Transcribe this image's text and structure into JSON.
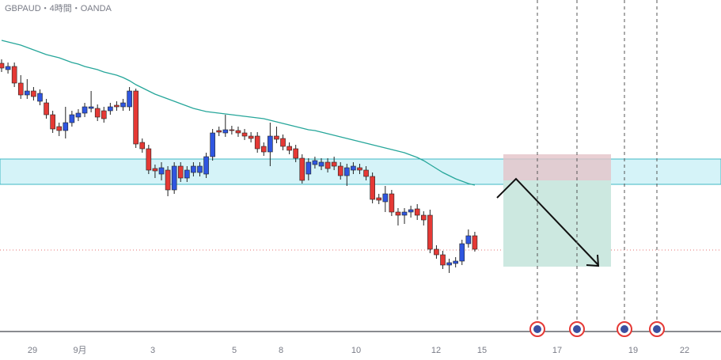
{
  "chart_data": {
    "type": "candlestick",
    "title": "GBPAUD・4時間・OANDA",
    "x_labels": [
      "29",
      "9月",
      "3",
      "5",
      "8",
      "10",
      "12",
      "15",
      "17",
      "19",
      "22"
    ],
    "ylim": [
      1.958,
      2.0
    ],
    "up_color": "#2f56e0",
    "down_color": "#e53935",
    "open": [
      1.992,
      1.9912,
      1.9916,
      1.9895,
      1.988,
      1.9885,
      1.9872,
      1.987,
      1.9855,
      1.984,
      1.9835,
      1.9845,
      1.9852,
      1.9857,
      1.9863,
      1.9863,
      1.986,
      1.986,
      1.9867,
      1.9865,
      1.9865,
      1.9885,
      1.982,
      1.9812,
      1.9787,
      1.978,
      1.9785,
      1.976,
      1.979,
      1.9775,
      1.9782,
      1.9782,
      1.978,
      1.9802,
      1.9835,
      1.9832,
      1.9836,
      1.9835,
      1.9832,
      1.9828,
      1.9828,
      1.9815,
      1.9808,
      1.9828,
      1.9825,
      1.9815,
      1.9812,
      1.98,
      1.978,
      1.9792,
      1.979,
      1.9795,
      1.9795,
      1.979,
      1.9778,
      1.9785,
      1.9788,
      1.9785,
      1.9777,
      1.975,
      1.9745,
      1.9755,
      1.9732,
      1.9728,
      1.9732,
      1.9736,
      1.9728,
      1.9728,
      1.9685,
      1.9678,
      1.9665,
      1.9667,
      1.967,
      1.9692,
      1.9702
    ],
    "high": [
      1.9925,
      1.9921,
      1.9921,
      1.9905,
      1.99,
      1.989,
      1.9887,
      1.9875,
      1.986,
      1.9845,
      1.9865,
      1.986,
      1.9862,
      1.987,
      1.9885,
      1.9868,
      1.9865,
      1.987,
      1.9872,
      1.9875,
      1.989,
      1.9888,
      1.9825,
      1.9817,
      1.9792,
      1.9795,
      1.979,
      1.9795,
      1.9795,
      1.979,
      1.9795,
      1.9795,
      1.9807,
      1.9837,
      1.984,
      1.9855,
      1.9841,
      1.984,
      1.9837,
      1.9833,
      1.9833,
      1.982,
      1.9845,
      1.984,
      1.983,
      1.982,
      1.9817,
      1.9805,
      1.98,
      1.9802,
      1.98,
      1.98,
      1.9802,
      1.9795,
      1.9793,
      1.9795,
      1.9793,
      1.979,
      1.9782,
      1.9755,
      1.9765,
      1.976,
      1.9737,
      1.9737,
      1.974,
      1.9742,
      1.9733,
      1.9735,
      1.969,
      1.9683,
      1.9673,
      1.9675,
      1.9697,
      1.971,
      1.9707
    ],
    "low": [
      1.9909,
      1.9907,
      1.989,
      1.9875,
      1.9875,
      1.9873,
      1.9867,
      1.985,
      1.9832,
      1.9828,
      1.9825,
      1.984,
      1.9847,
      1.9852,
      1.9858,
      1.9847,
      1.9845,
      1.9855,
      1.986,
      1.986,
      1.986,
      1.9813,
      1.9807,
      1.978,
      1.9775,
      1.9772,
      1.9752,
      1.9755,
      1.977,
      1.977,
      1.9777,
      1.9777,
      1.9775,
      1.9797,
      1.9828,
      1.9827,
      1.983,
      1.9827,
      1.9823,
      1.982,
      1.9807,
      1.9803,
      1.979,
      1.9819,
      1.981,
      1.9805,
      1.9795,
      1.9768,
      1.9772,
      1.9787,
      1.9785,
      1.9782,
      1.9785,
      1.9773,
      1.9765,
      1.978,
      1.978,
      1.9772,
      1.9743,
      1.9742,
      1.9732,
      1.9727,
      1.9715,
      1.9717,
      1.9725,
      1.9722,
      1.9715,
      1.968,
      1.9673,
      1.966,
      1.9655,
      1.9662,
      1.9665,
      1.9687,
      1.9682
    ],
    "close": [
      1.9914,
      1.9916,
      1.9895,
      1.988,
      1.9885,
      1.9878,
      1.9882,
      1.9855,
      1.9837,
      1.9835,
      1.9845,
      1.9855,
      1.9857,
      1.9865,
      1.9865,
      1.9852,
      1.985,
      1.9865,
      1.9865,
      1.987,
      1.9885,
      1.9818,
      1.9812,
      1.9785,
      1.9784,
      1.9788,
      1.976,
      1.979,
      1.9775,
      1.9785,
      1.979,
      1.979,
      1.9802,
      1.9832,
      1.9833,
      1.9836,
      1.9835,
      1.9832,
      1.9828,
      1.9825,
      1.9812,
      1.9808,
      1.9828,
      1.9824,
      1.9815,
      1.981,
      1.98,
      1.9772,
      1.9795,
      1.9797,
      1.9795,
      1.9787,
      1.979,
      1.9778,
      1.9788,
      1.979,
      1.9785,
      1.9777,
      1.9748,
      1.9747,
      1.9755,
      1.9732,
      1.9728,
      1.9732,
      1.9735,
      1.9728,
      1.9722,
      1.9685,
      1.9678,
      1.9665,
      1.9668,
      1.967,
      1.9692,
      1.9702,
      1.9685
    ],
    "ma": {
      "color": "#26a69a",
      "values": [
        1.9949,
        1.9947,
        1.9945,
        1.9943,
        1.994,
        1.9937,
        1.9934,
        1.9931,
        1.9929,
        1.9927,
        1.9924,
        1.9921,
        1.9919,
        1.9916,
        1.9914,
        1.9912,
        1.9909,
        1.9907,
        1.9905,
        1.9902,
        1.9898,
        1.9893,
        1.9889,
        1.9885,
        1.9881,
        1.9878,
        1.9875,
        1.9872,
        1.9869,
        1.9866,
        1.9863,
        1.9861,
        1.9859,
        1.9858,
        1.9857,
        1.9856,
        1.9855,
        1.9854,
        1.9853,
        1.9852,
        1.9851,
        1.985,
        1.9848,
        1.9846,
        1.9844,
        1.9842,
        1.984,
        1.9838,
        1.9836,
        1.9835,
        1.9833,
        1.9831,
        1.9829,
        1.9827,
        1.9825,
        1.9823,
        1.9821,
        1.9819,
        1.9817,
        1.9815,
        1.9813,
        1.9811,
        1.9809,
        1.9807,
        1.9804,
        1.9801,
        1.9797,
        1.9792,
        1.9787,
        1.9782,
        1.9778,
        1.9774,
        1.9771,
        1.9768,
        1.9766
      ]
    }
  }
}
